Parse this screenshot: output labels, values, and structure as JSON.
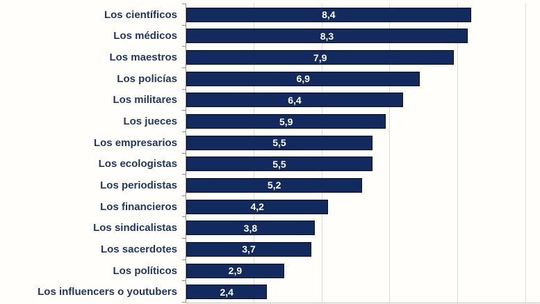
{
  "chart_data": {
    "type": "bar",
    "orientation": "horizontal",
    "title": "",
    "xlabel": "",
    "ylabel": "",
    "categories": [
      "Los científicos",
      "Los médicos",
      "Los maestros",
      "Los policías",
      "Los militares",
      "Los jueces",
      "Los empresarios",
      "Los ecologistas",
      "Los periodistas",
      "Los financieros",
      "Los sindicalistas",
      "Los sacerdotes",
      "Los políticos",
      "Los influencers o youtubers"
    ],
    "values": [
      8.4,
      8.3,
      7.9,
      6.9,
      6.4,
      5.9,
      5.5,
      5.5,
      5.2,
      4.2,
      3.8,
      3.7,
      2.9,
      2.4
    ],
    "value_labels": [
      "8,4",
      "8,3",
      "7,9",
      "6,9",
      "6,4",
      "5,9",
      "5,5",
      "5,5",
      "5,2",
      "4,2",
      "3,8",
      "3,7",
      "2,9",
      "2,4"
    ],
    "xlim": [
      0,
      10.43
    ],
    "gridlines_x": [
      2,
      4,
      6,
      8,
      10
    ],
    "grid": "vertical-only",
    "legend": "none",
    "decimal_separator": ",",
    "colors": {
      "bar_fill": "#132a5f",
      "bar_border": "#071022",
      "category_label": "#1f3864",
      "value_label": "#ffffff",
      "gridline": "#dcdcdc",
      "axis_line": "#8f8f8f",
      "baseline": "#c4c4c4",
      "background": "#fffefa"
    }
  }
}
